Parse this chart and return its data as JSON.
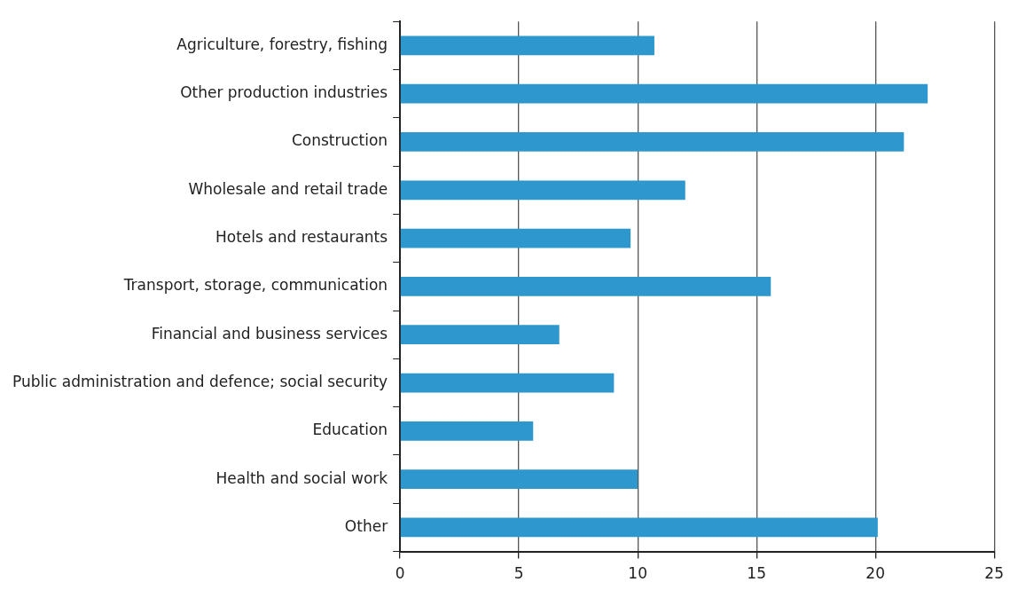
{
  "chart_data": {
    "type": "bar",
    "orientation": "horizontal",
    "categories": [
      "Agriculture, forestry, fishing",
      "Other production industries",
      "Construction",
      "Wholesale and retail trade",
      "Hotels and restaurants",
      "Transport, storage, communication",
      "Financial and business services",
      "Public administration and defence; social security",
      "Education",
      "Health and social work",
      "Other"
    ],
    "values": [
      10.7,
      22.2,
      21.2,
      12.0,
      9.7,
      15.6,
      6.7,
      9.0,
      5.6,
      10.0,
      20.1
    ],
    "color": "#2e98ce",
    "xlim": [
      0,
      25
    ],
    "xticks": [
      0,
      5,
      10,
      15,
      20,
      25
    ],
    "grid": "x",
    "legend": false
  }
}
